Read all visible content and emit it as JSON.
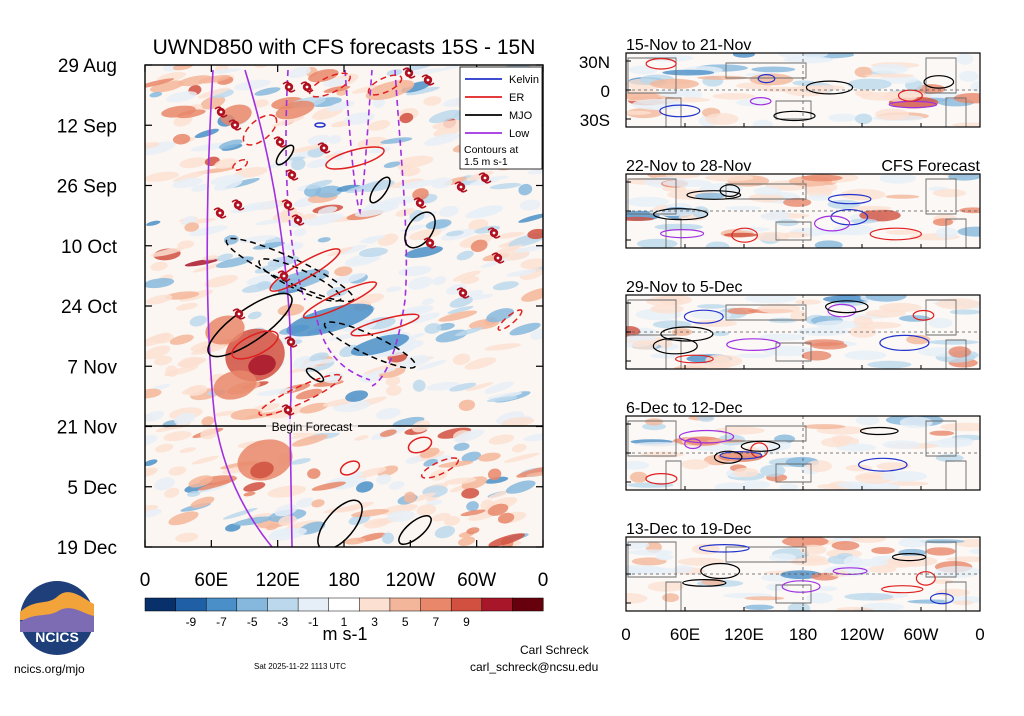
{
  "main": {
    "title": "UWND850 with CFS forecasts  15S - 15N",
    "y_ticks": [
      "29 Aug",
      "12 Sep",
      "26 Sep",
      "10 Oct",
      "24 Oct",
      "7 Nov",
      "21 Nov",
      "5 Dec",
      "19 Dec"
    ],
    "x_ticks": [
      "0",
      "60E",
      "120E",
      "180",
      "120W",
      "60W",
      "0"
    ],
    "forecast_label": "Begin Forecast",
    "legend": {
      "items": [
        {
          "label": "Kelvin",
          "color": "#2233cc"
        },
        {
          "label": "ER",
          "color": "#e02020"
        },
        {
          "label": "MJO",
          "color": "#000000"
        },
        {
          "label": "Low",
          "color": "#a030e0"
        }
      ],
      "note_line1": "Contours at",
      "note_line2": "1.5 m s-1"
    }
  },
  "colorbar": {
    "tick_labels": [
      "-9",
      "-7",
      "-5",
      "-3",
      "-1",
      "1",
      "3",
      "5",
      "7",
      "9"
    ],
    "units": "m s-1",
    "colors": [
      "#08306b",
      "#1f5fa6",
      "#4a8fc8",
      "#86b8dd",
      "#bcd8ec",
      "#e6eff7",
      "#ffffff",
      "#fce1d2",
      "#f4b69a",
      "#e8876a",
      "#d1503f",
      "#a8162a",
      "#67000d"
    ]
  },
  "panels": [
    {
      "title": "15-Nov to 21-Nov",
      "subtitle": ""
    },
    {
      "title": "22-Nov to 28-Nov",
      "subtitle": "CFS Forecast"
    },
    {
      "title": "29-Nov to 5-Dec",
      "subtitle": ""
    },
    {
      "title": "6-Dec to 12-Dec",
      "subtitle": ""
    },
    {
      "title": "13-Dec to 19-Dec",
      "subtitle": ""
    }
  ],
  "panel_lat_ticks": [
    "30N",
    "0",
    "30S"
  ],
  "panel_x_ticks": [
    "0",
    "60E",
    "120E",
    "180",
    "120W",
    "60W",
    "0"
  ],
  "footer": {
    "logo_text": "NCICS",
    "url": "ncics.org/mjo",
    "timestamp": "Sat 2025-11-22 1113 UTC",
    "author": "Carl Schreck",
    "email": "carl_schreck@ncsu.edu"
  },
  "chart_data": [
    {
      "type": "heatmap",
      "title": "UWND850 with CFS forecasts  15S - 15N",
      "x_axis": "longitude",
      "xlim": [
        0,
        360
      ],
      "y_axis": "time",
      "ylim": [
        "29 Aug",
        "19 Dec"
      ],
      "forecast_start": "21 Nov",
      "colorbar_range": [
        -10,
        10
      ],
      "units": "m s-1",
      "contours": [
        "Kelvin",
        "ER",
        "MJO",
        "Low"
      ],
      "contour_interval": "1.5 m s-1",
      "legend_position": "top-right"
    },
    {
      "type": "heatmap",
      "panels": [
        "15-Nov to 21-Nov",
        "22-Nov to 28-Nov",
        "29-Nov to 5-Dec",
        "6-Dec to 12-Dec",
        "13-Dec to 19-Dec"
      ],
      "x_axis": "longitude",
      "xlim": [
        0,
        360
      ],
      "latitude_range": [
        "30S",
        "30N"
      ]
    }
  ]
}
